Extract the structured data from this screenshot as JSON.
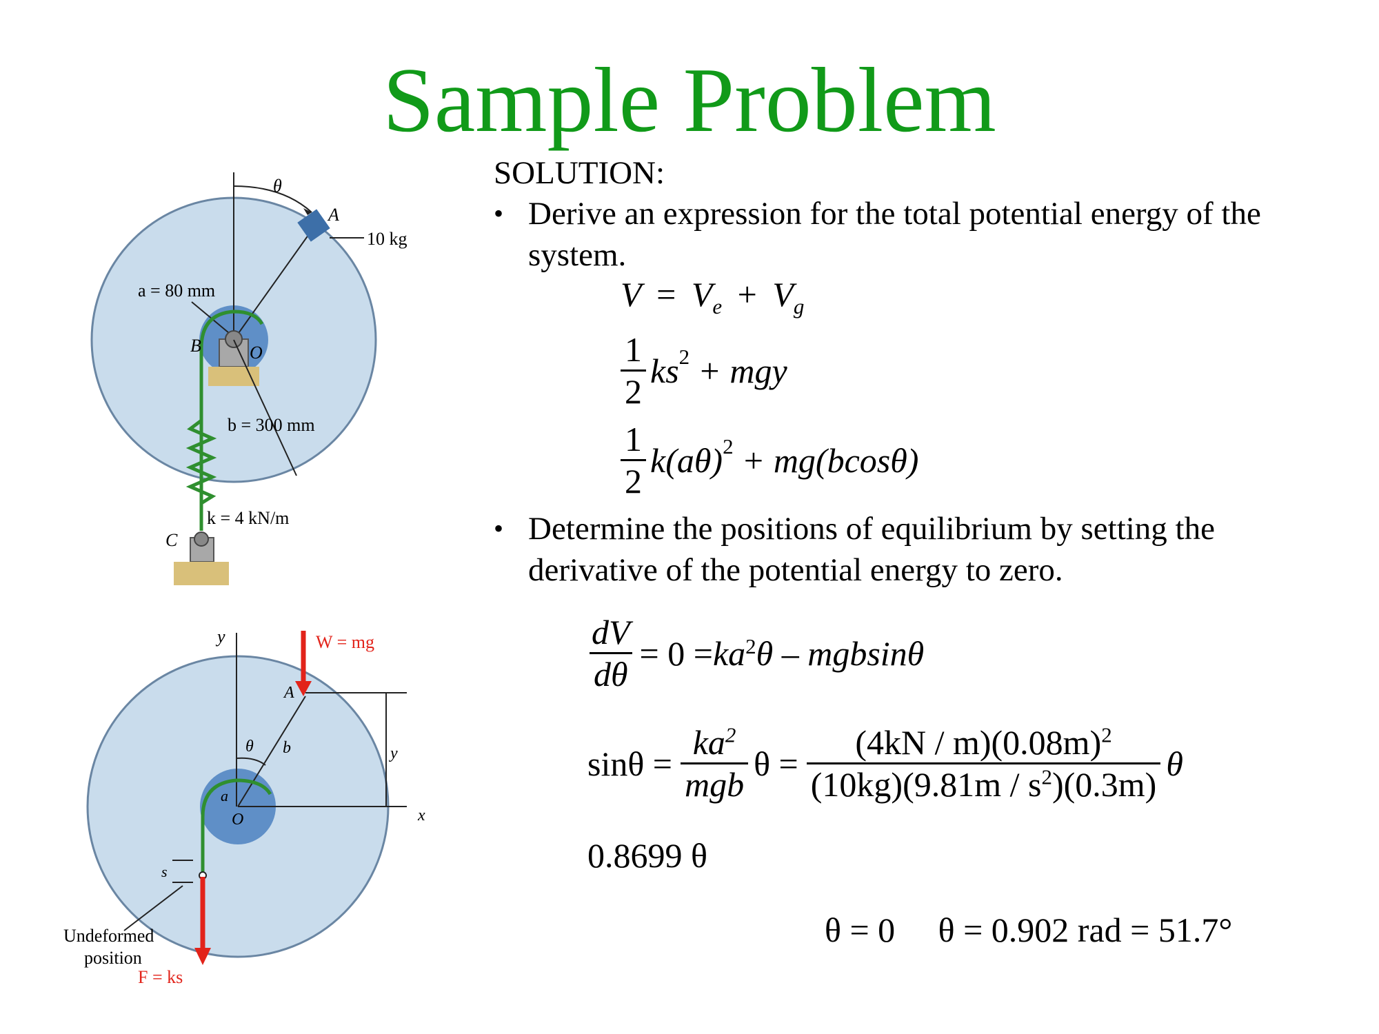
{
  "slide": {
    "title": "Sample Problem",
    "solution_label": "SOLUTION:",
    "bullet_char": "•",
    "bullet1_line1": "Derive an expression for the total potential energy of the",
    "bullet1_line2": "system.",
    "bullet2_line1": "Determine the positions of equilibrium by setting the",
    "bullet2_line2": "derivative of the potential energy to zero."
  },
  "equations": {
    "v_eq": {
      "lhs": "V",
      "eq": "=",
      "ve": "V",
      "ve_sub": "e",
      "plus": "+",
      "vg": "V",
      "vg_sub": "g"
    },
    "half": {
      "num": "1",
      "den": "2"
    },
    "line2": {
      "ks": "ks",
      "sup": "2",
      "rest": "+ mgy"
    },
    "line3": {
      "k": "k",
      "mid": "(aθ)",
      "sup": "2",
      "rest": "+ mg(bcosθ)"
    },
    "dv": {
      "num": "dV",
      "den": "dθ",
      "rhs": "= 0 = ",
      "ka": "ka",
      "sup": "2",
      "rest": "θ – mgbsinθ"
    },
    "sin_lhs": "sinθ =",
    "frac_ka": {
      "num": "ka",
      "num_sup": "2",
      "den": "mgb"
    },
    "theta_eq": "θ =",
    "big_num": "(4kN / m)(0.08m)",
    "big_num_sup": "2",
    "big_den1": "(10kg)(9.81m / s",
    "big_den_sup": "2",
    "big_den2": ")(0.3m)",
    "theta_tail": "θ",
    "result_factor": "0.8699 θ",
    "final": "θ = 0     θ = 0.902 rad = 51.7°"
  },
  "figure_top": {
    "theta": "θ",
    "A": "A",
    "mass": "10 kg",
    "a_label": "a = 80 mm",
    "B": "B",
    "O": "O",
    "b_label": "b = 300 mm",
    "k_label": "k = 4 kN/m",
    "C": "C"
  },
  "figure_bottom": {
    "y": "y",
    "W": "W = mg",
    "A": "A",
    "theta": "θ",
    "b": "b",
    "a": "a",
    "O": "O",
    "y_dim": "y",
    "x": "x",
    "s": "s",
    "undeformed1": "Undeformed",
    "undeformed2": "position",
    "F": "F = ks"
  },
  "colors": {
    "title_green": "#119a19",
    "disk_fill": "#c9dcec",
    "hub_fill": "#5f8fc7",
    "force_red": "#e2231a",
    "rope_green": "#2f8f2f",
    "ground": "#d9c07a"
  }
}
